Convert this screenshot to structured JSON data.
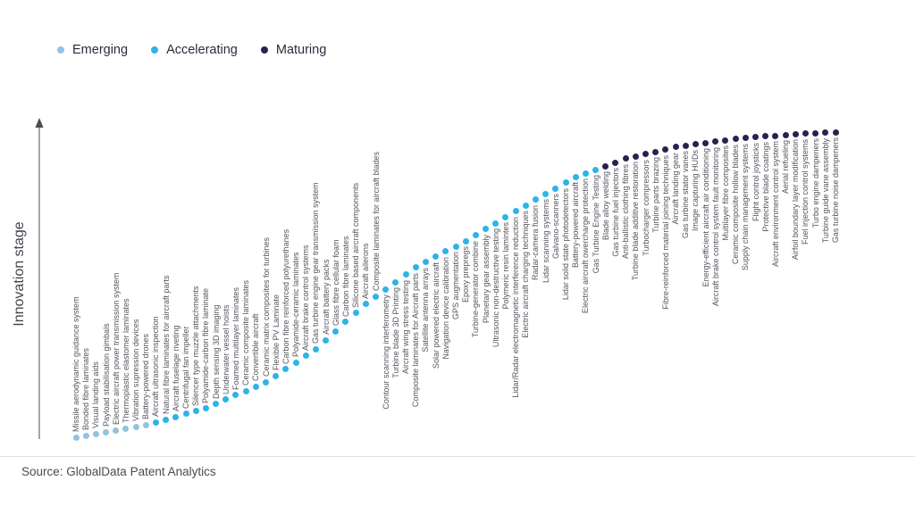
{
  "legend": {
    "items": [
      {
        "label": "Emerging",
        "color": "#93c2de"
      },
      {
        "label": "Accelerating",
        "color": "#2db3e8"
      },
      {
        "label": "Maturing",
        "color": "#2a2150"
      }
    ]
  },
  "y_axis": {
    "label": "Innovation stage"
  },
  "footer": {
    "source": "Source: GlobalData Patent Analytics"
  },
  "chart_data": {
    "type": "scatter",
    "title": "",
    "xlabel": "",
    "ylabel": "Innovation stage",
    "grid": false,
    "legend_position": "top-left",
    "axes": "vertical arrow axis only, no ticks, no x-axis line",
    "curve_shape": "logistic S-curve rising left-to-right, one dot per technology in listed order",
    "stage_colors": {
      "Emerging": "#93c2de",
      "Accelerating": "#2db3e8",
      "Maturing": "#2a2150"
    },
    "items": [
      {
        "label": "Missile aerodynamic guidance system",
        "stage": "Emerging"
      },
      {
        "label": "Bonded fibre laminates",
        "stage": "Emerging"
      },
      {
        "label": "Visual landing aids",
        "stage": "Emerging"
      },
      {
        "label": "Payload stabilisation gimbals",
        "stage": "Emerging"
      },
      {
        "label": "Electric aircraft power transmission system",
        "stage": "Emerging"
      },
      {
        "label": "Thermoplastic elastomer laminates",
        "stage": "Emerging"
      },
      {
        "label": "Vibration supression devices",
        "stage": "Emerging"
      },
      {
        "label": "Battery-powered drones",
        "stage": "Emerging"
      },
      {
        "label": "Aircraft ultrasonic inspection",
        "stage": "Accelerating"
      },
      {
        "label": "Natural fibre laminates for aircraft parts",
        "stage": "Accelerating"
      },
      {
        "label": "Aircraft fuselage riveting",
        "stage": "Accelerating"
      },
      {
        "label": "Centrifugal fan impeller",
        "stage": "Accelerating"
      },
      {
        "label": "Silencer type muzzle attachments",
        "stage": "Accelerating"
      },
      {
        "label": "Polyamide-carbon fibre laminate",
        "stage": "Accelerating"
      },
      {
        "label": "Depth sensing 3D imaging",
        "stage": "Accelerating"
      },
      {
        "label": "Underwater vessel hoists",
        "stage": "Accelerating"
      },
      {
        "label": "Foamed multilayer laminates",
        "stage": "Accelerating"
      },
      {
        "label": "Ceramic composite laminates",
        "stage": "Accelerating"
      },
      {
        "label": "Convertible aircraft",
        "stage": "Accelerating"
      },
      {
        "label": "Ceramic matrix composites for turbines",
        "stage": "Accelerating"
      },
      {
        "label": "Flexible PV Laminate",
        "stage": "Accelerating"
      },
      {
        "label": "Carbon fibre reinforced polyurethanes",
        "stage": "Accelerating"
      },
      {
        "label": "Polyamide-ceramic laminates",
        "stage": "Accelerating"
      },
      {
        "label": "Aircraft brake control systems",
        "stage": "Accelerating"
      },
      {
        "label": "Gas turbine engine gear transmission system",
        "stage": "Accelerating"
      },
      {
        "label": "Aircraft battery packs",
        "stage": "Accelerating"
      },
      {
        "label": "Glass fibre cellular foam",
        "stage": "Accelerating"
      },
      {
        "label": "Carbon fibre laminates",
        "stage": "Accelerating"
      },
      {
        "label": "Silicone based aircraft components",
        "stage": "Accelerating"
      },
      {
        "label": "Aircraft ailerons",
        "stage": "Accelerating"
      },
      {
        "label": "Composite laminates for aircraft blades",
        "stage": "Accelerating"
      },
      {
        "label": "Contour scanning interferometry",
        "stage": "Accelerating"
      },
      {
        "label": "Turbine blade 3D Printing",
        "stage": "Accelerating"
      },
      {
        "label": "Aircraft wing stress testing",
        "stage": "Accelerating"
      },
      {
        "label": "Composite laminates for Aircraft parts",
        "stage": "Accelerating"
      },
      {
        "label": "Satellite antenna arrays",
        "stage": "Accelerating"
      },
      {
        "label": "Solar powered electric aircraft",
        "stage": "Accelerating"
      },
      {
        "label": "Navigation device calibration",
        "stage": "Accelerating"
      },
      {
        "label": "GPS augmentation",
        "stage": "Accelerating"
      },
      {
        "label": "Epoxy prepregs",
        "stage": "Accelerating"
      },
      {
        "label": "Turbine-generator combine",
        "stage": "Accelerating"
      },
      {
        "label": "Planetary gear assembly",
        "stage": "Accelerating"
      },
      {
        "label": "Ultrasonic non-destructive testing",
        "stage": "Accelerating"
      },
      {
        "label": "Polymeric resin lamintes",
        "stage": "Accelerating"
      },
      {
        "label": "Lidar/Radar electromagnetic interference reduction",
        "stage": "Accelerating"
      },
      {
        "label": "Electric aircraft charging techniques",
        "stage": "Accelerating"
      },
      {
        "label": "Radar-camera fusion",
        "stage": "Accelerating"
      },
      {
        "label": "Lidar scanning systems",
        "stage": "Accelerating"
      },
      {
        "label": "Galvano-scanners",
        "stage": "Accelerating"
      },
      {
        "label": "Lidar solid state photodetectors",
        "stage": "Accelerating"
      },
      {
        "label": "Battery-powered aircraft",
        "stage": "Accelerating"
      },
      {
        "label": "Electric aircraft owercharge protection",
        "stage": "Accelerating"
      },
      {
        "label": "Gas Turbine Engine Testing",
        "stage": "Accelerating"
      },
      {
        "label": "Blade alloy welding",
        "stage": "Maturing"
      },
      {
        "label": "Gas turbine fuel injectors",
        "stage": "Maturing"
      },
      {
        "label": "Anti-ballistic clothing fibres",
        "stage": "Maturing"
      },
      {
        "label": "Turbine blade additive restoration",
        "stage": "Maturing"
      },
      {
        "label": "Turbocharger compressors",
        "stage": "Maturing"
      },
      {
        "label": "Turbine parts brazing",
        "stage": "Maturing"
      },
      {
        "label": "Fibre-reinforced material joining techniques",
        "stage": "Maturing"
      },
      {
        "label": "Aircraft landing gear",
        "stage": "Maturing"
      },
      {
        "label": "Gas turbine stator vanes",
        "stage": "Maturing"
      },
      {
        "label": "Image capturing HUDs",
        "stage": "Maturing"
      },
      {
        "label": "Energy-efficient aircraft air conditioning",
        "stage": "Maturing"
      },
      {
        "label": "Aircraft brake control system fault monitoring",
        "stage": "Maturing"
      },
      {
        "label": "Multilayer fibre composites",
        "stage": "Maturing"
      },
      {
        "label": "Ceramic composite hollow blades",
        "stage": "Maturing"
      },
      {
        "label": "Supply chain management systems",
        "stage": "Maturing"
      },
      {
        "label": "Flight control joysticks",
        "stage": "Maturing"
      },
      {
        "label": "Protective blade coatings",
        "stage": "Maturing"
      },
      {
        "label": "Aircraft environment control system",
        "stage": "Maturing"
      },
      {
        "label": "Aerial refueling",
        "stage": "Maturing"
      },
      {
        "label": "Airfoil boundary layer modification",
        "stage": "Maturing"
      },
      {
        "label": "Fuel injection control systems",
        "stage": "Maturing"
      },
      {
        "label": "Turbo engine dampeners",
        "stage": "Maturing"
      },
      {
        "label": "Turbine guide vane assembly",
        "stage": "Maturing"
      },
      {
        "label": "Gas turbine noise dampeners",
        "stage": "Maturing"
      }
    ]
  }
}
